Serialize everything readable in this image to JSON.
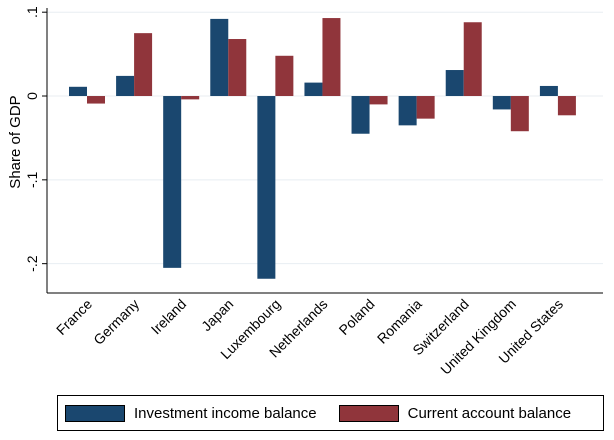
{
  "chart_data": {
    "type": "bar",
    "ylabel": "Share of GDP",
    "ylim": [
      -0.235,
      0.105
    ],
    "yticks": [
      {
        "value": 0.1,
        "label": ".1"
      },
      {
        "value": 0,
        "label": "0"
      },
      {
        "value": -0.1,
        "label": "-.1"
      },
      {
        "value": -0.2,
        "label": "-.2"
      }
    ],
    "grid": true,
    "legend_position": "bottom",
    "categories": [
      "France",
      "Germany",
      "Ireland",
      "Japan",
      "Luxembourg",
      "Netherlands",
      "Poland",
      "Romania",
      "Switzerland",
      "United Kingdom",
      "United States"
    ],
    "series": [
      {
        "name": "Investment income balance",
        "color": "#1a476f",
        "values": [
          0.011,
          0.024,
          -0.205,
          0.092,
          -0.218,
          0.016,
          -0.045,
          -0.035,
          0.031,
          -0.016,
          0.012
        ]
      },
      {
        "name": "Current account balance",
        "color": "#90353b",
        "values": [
          -0.009,
          0.075,
          -0.004,
          0.068,
          0.048,
          0.093,
          -0.01,
          -0.027,
          0.088,
          -0.042,
          -0.023
        ]
      }
    ]
  }
}
